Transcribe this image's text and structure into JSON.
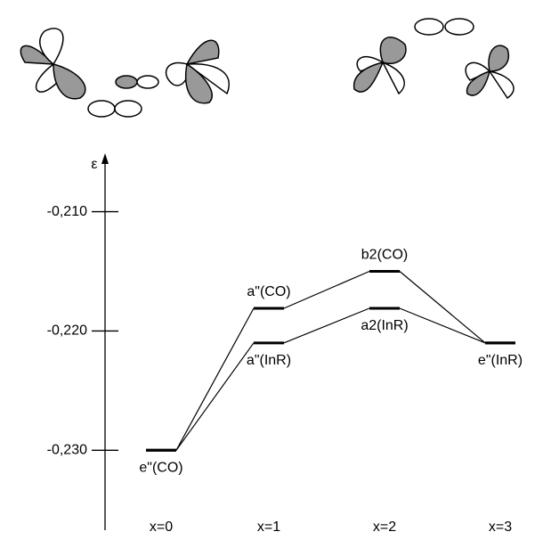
{
  "chart_data": {
    "type": "levels",
    "y_label": "ε",
    "categories": [
      "x=0",
      "x=1",
      "x=2",
      "x=3"
    ],
    "ylim": [
      -0.2367,
      -0.2057
    ],
    "yticks": [
      {
        "value": -0.21,
        "label": "-0,210"
      },
      {
        "value": -0.22,
        "label": "-0,220"
      },
      {
        "value": -0.23,
        "label": "-0,230"
      }
    ],
    "series": [
      {
        "values": [
          -0.23,
          -0.2181,
          -0.215,
          -0.221
        ],
        "labels": [
          null,
          "a\"(CO)",
          "b2(CO)",
          null
        ]
      },
      {
        "values": [
          -0.23,
          -0.221,
          -0.2181,
          -0.221
        ],
        "labels": [
          "e\"(CO)",
          "a\"(InR)",
          "a2(InR)",
          "e\"(InR)"
        ]
      }
    ]
  }
}
